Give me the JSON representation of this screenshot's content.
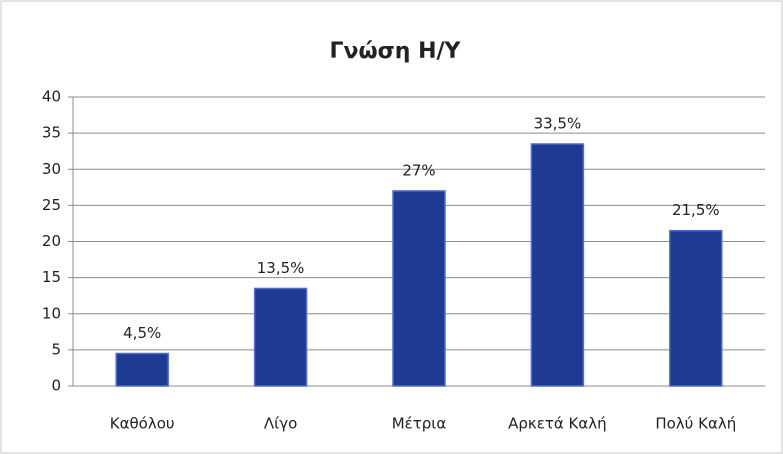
{
  "chart_data": {
    "type": "bar",
    "title": "Γνώση Η/Υ",
    "categories": [
      "Καθόλου",
      "Λίγο",
      "Μέτρια",
      "Αρκετά Καλή",
      "Πολύ Καλή"
    ],
    "values": [
      4.5,
      13.5,
      27,
      33.5,
      21.5
    ],
    "value_labels": [
      "4,5%",
      "13,5%",
      "27%",
      "33,5%",
      "21,5%"
    ],
    "color": "#1f3a93",
    "ylim": [
      0,
      40
    ],
    "yticks": [
      0,
      5,
      10,
      15,
      20,
      25,
      30,
      35,
      40
    ],
    "grid": true
  }
}
